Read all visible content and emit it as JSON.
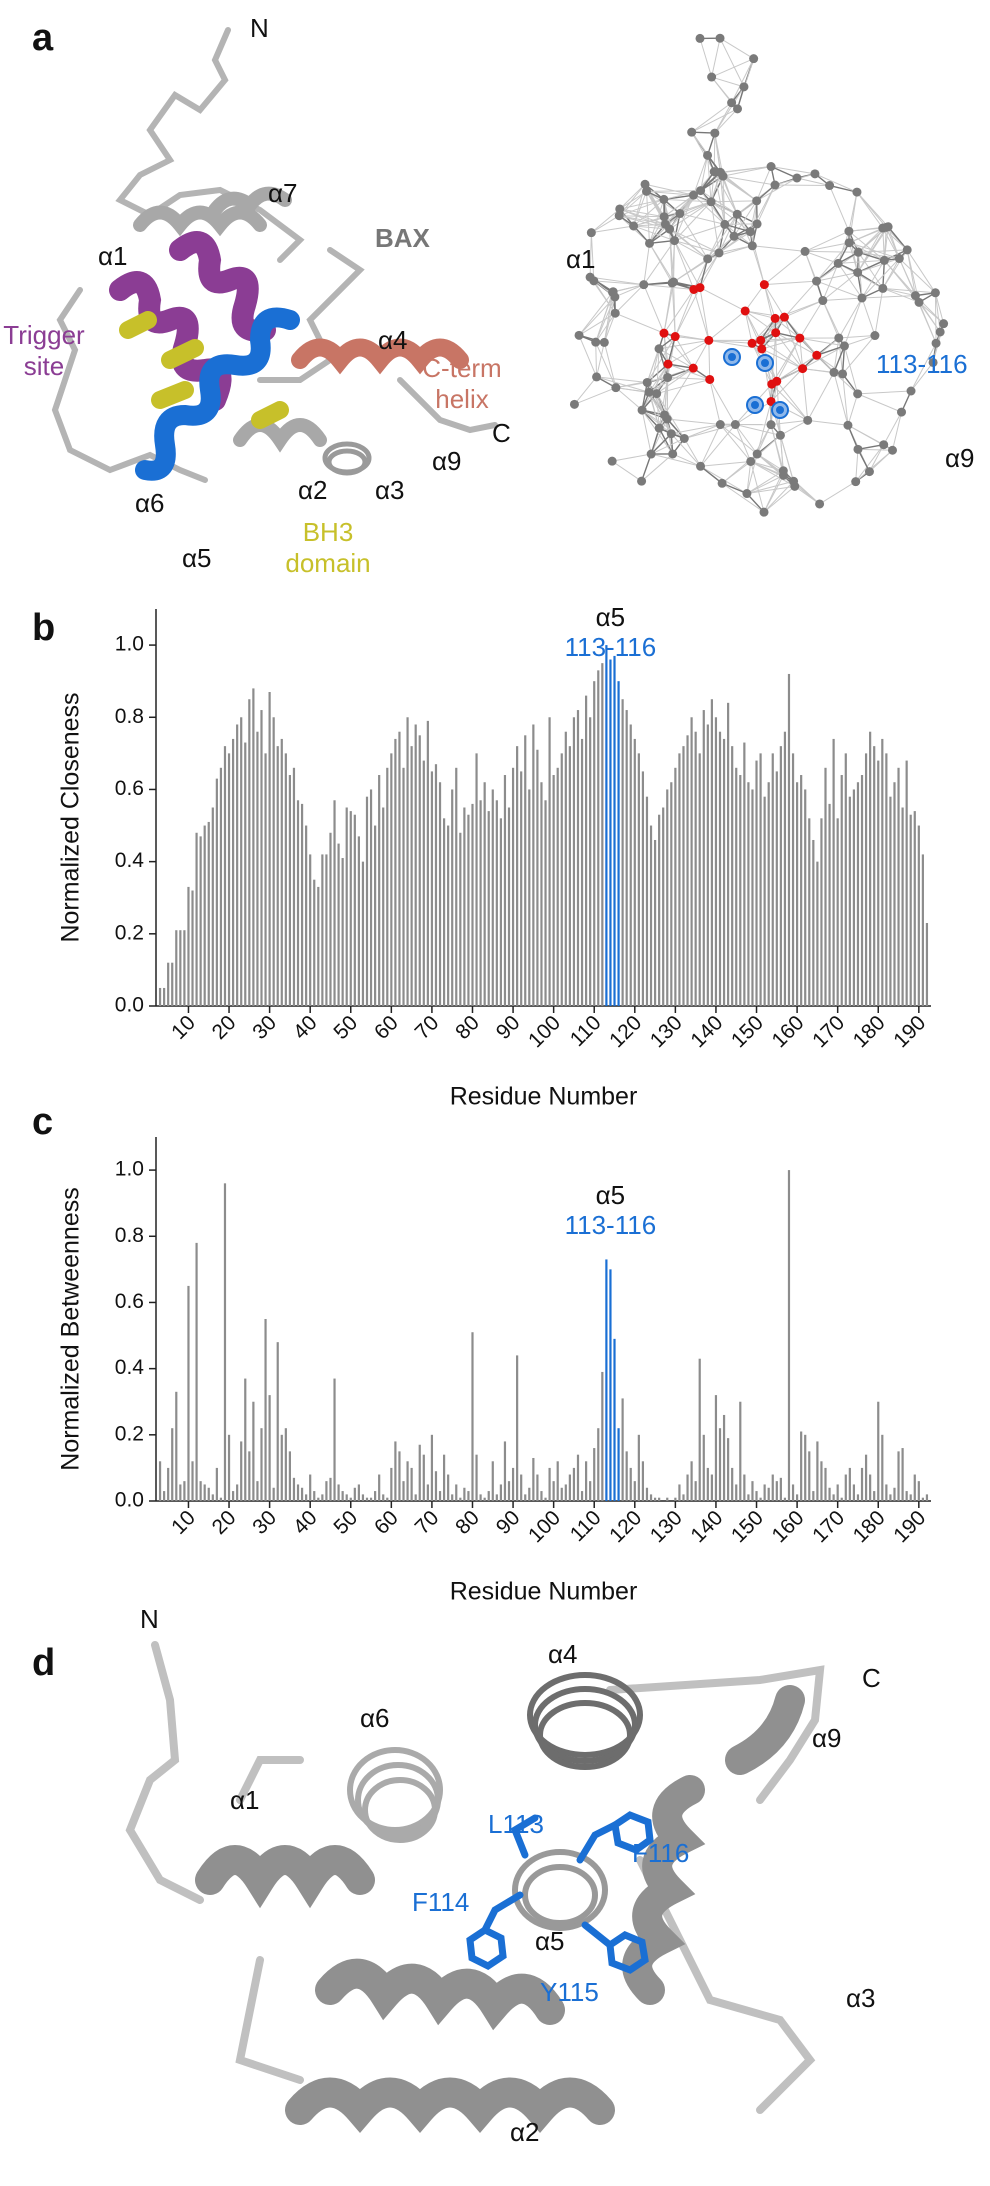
{
  "panels": {
    "a": {
      "letter": "a",
      "n": "N",
      "a7": "α7",
      "a1": "α1",
      "bax": "BAX",
      "trigger_site": [
        "Trigger",
        "site"
      ],
      "a4": "α4",
      "c_term_helix": [
        "C-term",
        "helix"
      ],
      "c": "C",
      "a9": "α9",
      "a6": "α6",
      "a2": "α2",
      "a3": "α3",
      "a5": "α5",
      "bh3_domain": [
        "BH3",
        "domain"
      ],
      "network_a1": "α1",
      "network_site": "113-116",
      "network_a9": "α9"
    },
    "d": {
      "letter": "d",
      "n": "N",
      "a4": "α4",
      "c": "C",
      "a6": "α6",
      "a9": "α9",
      "a1": "α1",
      "l113": "L113",
      "f116": "F116",
      "f114": "F114",
      "a5": "α5",
      "y115": "Y115",
      "a3": "α3",
      "a2": "α2"
    }
  },
  "chart_data": [
    {
      "type": "bar",
      "letter": "b",
      "ylabel": "Normalized Closeness",
      "xlabel": "Residue Number",
      "annotation": [
        "α5",
        "113-116"
      ],
      "color": "#8c8c8c",
      "highlight_color": "#1a6fd4",
      "highlight_x": [
        113,
        114,
        115,
        116
      ],
      "xlim": [
        2,
        193
      ],
      "xticks": [
        10,
        20,
        30,
        40,
        50,
        60,
        70,
        80,
        90,
        100,
        110,
        120,
        130,
        140,
        150,
        160,
        170,
        180,
        190
      ],
      "ylim": [
        0,
        1.1
      ],
      "yticks": [
        {
          "value": 0,
          "label": "0.0"
        },
        0.2,
        0.4,
        0.6,
        {
          "value": 0.8,
          "label": "0.8"
        },
        {
          "value": 1,
          "label": "1.0"
        }
      ],
      "x": [
        3,
        4,
        5,
        6,
        7,
        8,
        9,
        10,
        11,
        12,
        13,
        14,
        15,
        16,
        17,
        18,
        19,
        20,
        21,
        22,
        23,
        24,
        25,
        26,
        27,
        28,
        29,
        30,
        31,
        32,
        33,
        34,
        35,
        36,
        37,
        38,
        39,
        40,
        41,
        42,
        43,
        44,
        45,
        46,
        47,
        48,
        49,
        50,
        51,
        52,
        53,
        54,
        55,
        56,
        57,
        58,
        59,
        60,
        61,
        62,
        63,
        64,
        65,
        66,
        67,
        68,
        69,
        70,
        71,
        72,
        73,
        74,
        75,
        76,
        77,
        78,
        79,
        80,
        81,
        82,
        83,
        84,
        85,
        86,
        87,
        88,
        89,
        90,
        91,
        92,
        93,
        94,
        95,
        96,
        97,
        98,
        99,
        100,
        101,
        102,
        103,
        104,
        105,
        106,
        107,
        108,
        109,
        110,
        111,
        112,
        113,
        114,
        115,
        116,
        117,
        118,
        119,
        120,
        121,
        122,
        123,
        124,
        125,
        126,
        127,
        128,
        129,
        130,
        131,
        132,
        133,
        134,
        135,
        136,
        137,
        138,
        139,
        140,
        141,
        142,
        143,
        144,
        145,
        146,
        147,
        148,
        149,
        150,
        151,
        152,
        153,
        154,
        155,
        156,
        157,
        158,
        159,
        160,
        161,
        162,
        163,
        164,
        165,
        166,
        167,
        168,
        169,
        170,
        171,
        172,
        173,
        174,
        175,
        176,
        177,
        178,
        179,
        180,
        181,
        182,
        183,
        184,
        185,
        186,
        187,
        188,
        189,
        190,
        191,
        192
      ],
      "values": [
        0.05,
        0.05,
        0.12,
        0.12,
        0.21,
        0.21,
        0.21,
        0.33,
        0.32,
        0.48,
        0.47,
        0.5,
        0.51,
        0.55,
        0.63,
        0.66,
        0.72,
        0.7,
        0.74,
        0.78,
        0.8,
        0.73,
        0.85,
        0.88,
        0.76,
        0.82,
        0.7,
        0.87,
        0.8,
        0.72,
        0.74,
        0.7,
        0.64,
        0.66,
        0.57,
        0.56,
        0.5,
        0.42,
        0.35,
        0.33,
        0.42,
        0.42,
        0.48,
        0.57,
        0.45,
        0.41,
        0.55,
        0.54,
        0.53,
        0.47,
        0.4,
        0.58,
        0.6,
        0.5,
        0.64,
        0.55,
        0.66,
        0.7,
        0.74,
        0.76,
        0.66,
        0.8,
        0.72,
        0.78,
        0.75,
        0.68,
        0.79,
        0.65,
        0.67,
        0.62,
        0.52,
        0.5,
        0.6,
        0.66,
        0.48,
        0.55,
        0.53,
        0.56,
        0.7,
        0.57,
        0.62,
        0.54,
        0.6,
        0.57,
        0.52,
        0.64,
        0.55,
        0.66,
        0.72,
        0.65,
        0.75,
        0.6,
        0.78,
        0.71,
        0.62,
        0.57,
        0.8,
        0.64,
        0.66,
        0.7,
        0.76,
        0.72,
        0.8,
        0.82,
        0.74,
        0.86,
        0.8,
        0.9,
        0.93,
        0.95,
        1.0,
        0.96,
        0.97,
        0.9,
        0.85,
        0.82,
        0.78,
        0.74,
        0.7,
        0.65,
        0.58,
        0.5,
        0.46,
        0.53,
        0.55,
        0.6,
        0.62,
        0.66,
        0.7,
        0.72,
        0.75,
        0.8,
        0.76,
        0.7,
        0.82,
        0.78,
        0.85,
        0.8,
        0.76,
        0.74,
        0.84,
        0.72,
        0.66,
        0.64,
        0.73,
        0.62,
        0.6,
        0.68,
        0.7,
        0.58,
        0.62,
        0.7,
        0.65,
        0.72,
        0.76,
        0.92,
        0.7,
        0.62,
        0.64,
        0.6,
        0.52,
        0.46,
        0.4,
        0.52,
        0.66,
        0.56,
        0.74,
        0.52,
        0.64,
        0.7,
        0.58,
        0.6,
        0.62,
        0.64,
        0.7,
        0.76,
        0.72,
        0.68,
        0.74,
        0.7,
        0.58,
        0.62,
        0.66,
        0.55,
        0.68,
        0.53,
        0.54,
        0.5,
        0.42,
        0.23
      ]
    },
    {
      "type": "bar",
      "letter": "c",
      "ylabel": "Normalized Betweenness",
      "xlabel": "Residue Number",
      "annotation": [
        "α5",
        "113-116"
      ],
      "color": "#8c8c8c",
      "highlight_color": "#1a6fd4",
      "highlight_x": [
        113,
        114,
        115,
        116
      ],
      "xlim": [
        2,
        193
      ],
      "xticks": [
        10,
        20,
        30,
        40,
        50,
        60,
        70,
        80,
        90,
        100,
        110,
        120,
        130,
        140,
        150,
        160,
        170,
        180,
        190
      ],
      "ylim": [
        0,
        1.1
      ],
      "yticks": [
        {
          "value": 0,
          "label": "0.0"
        },
        0.2,
        0.4,
        0.6,
        0.8,
        {
          "value": 1,
          "label": "1.0"
        }
      ],
      "x": [
        3,
        4,
        5,
        6,
        7,
        8,
        9,
        10,
        11,
        12,
        13,
        14,
        15,
        16,
        17,
        18,
        19,
        20,
        21,
        22,
        23,
        24,
        25,
        26,
        27,
        28,
        29,
        30,
        31,
        32,
        33,
        34,
        35,
        36,
        37,
        38,
        39,
        40,
        41,
        42,
        43,
        44,
        45,
        46,
        47,
        48,
        49,
        50,
        51,
        52,
        53,
        54,
        55,
        56,
        57,
        58,
        59,
        60,
        61,
        62,
        63,
        64,
        65,
        66,
        67,
        68,
        69,
        70,
        71,
        72,
        73,
        74,
        75,
        76,
        77,
        78,
        79,
        80,
        81,
        82,
        83,
        84,
        85,
        86,
        87,
        88,
        89,
        90,
        91,
        92,
        93,
        94,
        95,
        96,
        97,
        98,
        99,
        100,
        101,
        102,
        103,
        104,
        105,
        106,
        107,
        108,
        109,
        110,
        111,
        112,
        113,
        114,
        115,
        116,
        117,
        118,
        119,
        120,
        121,
        122,
        123,
        124,
        125,
        126,
        127,
        128,
        129,
        130,
        131,
        132,
        133,
        134,
        135,
        136,
        137,
        138,
        139,
        140,
        141,
        142,
        143,
        144,
        145,
        146,
        147,
        148,
        149,
        150,
        151,
        152,
        153,
        154,
        155,
        156,
        157,
        158,
        159,
        160,
        161,
        162,
        163,
        164,
        165,
        166,
        167,
        168,
        169,
        170,
        171,
        172,
        173,
        174,
        175,
        176,
        177,
        178,
        179,
        180,
        181,
        182,
        183,
        184,
        185,
        186,
        187,
        188,
        189,
        190,
        191,
        192
      ],
      "values": [
        0.12,
        0.03,
        0.1,
        0.22,
        0.33,
        0.05,
        0.06,
        0.65,
        0.12,
        0.78,
        0.06,
        0.05,
        0.04,
        0.02,
        0.1,
        0.01,
        0.96,
        0.2,
        0.03,
        0.05,
        0.18,
        0.37,
        0.15,
        0.3,
        0.06,
        0.22,
        0.55,
        0.32,
        0.04,
        0.48,
        0.2,
        0.22,
        0.15,
        0.07,
        0.05,
        0.04,
        0.02,
        0.08,
        0.03,
        0.01,
        0.02,
        0.06,
        0.07,
        0.37,
        0.05,
        0.03,
        0.02,
        0.01,
        0.04,
        0.05,
        0.02,
        0.01,
        0.01,
        0.03,
        0.08,
        0.02,
        0.01,
        0.1,
        0.18,
        0.15,
        0.06,
        0.12,
        0.1,
        0.02,
        0.17,
        0.14,
        0.05,
        0.2,
        0.09,
        0.03,
        0.14,
        0.08,
        0.02,
        0.05,
        0.01,
        0.04,
        0.03,
        0.51,
        0.14,
        0.02,
        0.01,
        0.03,
        0.12,
        0.02,
        0.05,
        0.18,
        0.06,
        0.1,
        0.44,
        0.08,
        0.02,
        0.04,
        0.13,
        0.08,
        0.03,
        0.01,
        0.1,
        0.06,
        0.12,
        0.04,
        0.05,
        0.08,
        0.1,
        0.14,
        0.03,
        0.12,
        0.06,
        0.16,
        0.22,
        0.39,
        0.73,
        0.7,
        0.49,
        0.22,
        0.31,
        0.15,
        0.1,
        0.06,
        0.2,
        0.12,
        0.04,
        0.02,
        0.01,
        0.01,
        0.0,
        0.01,
        0.0,
        0.01,
        0.05,
        0.02,
        0.08,
        0.12,
        0.06,
        0.43,
        0.2,
        0.1,
        0.08,
        0.32,
        0.22,
        0.26,
        0.19,
        0.1,
        0.05,
        0.3,
        0.08,
        0.02,
        0.06,
        0.03,
        0.01,
        0.05,
        0.04,
        0.08,
        0.06,
        0.07,
        0.01,
        1.0,
        0.05,
        0.02,
        0.21,
        0.2,
        0.15,
        0.03,
        0.18,
        0.12,
        0.1,
        0.04,
        0.02,
        0.05,
        0.01,
        0.08,
        0.1,
        0.05,
        0.02,
        0.1,
        0.14,
        0.08,
        0.03,
        0.3,
        0.2,
        0.05,
        0.02,
        0.04,
        0.15,
        0.16,
        0.03,
        0.02,
        0.08,
        0.06,
        0.01,
        0.02
      ]
    }
  ]
}
